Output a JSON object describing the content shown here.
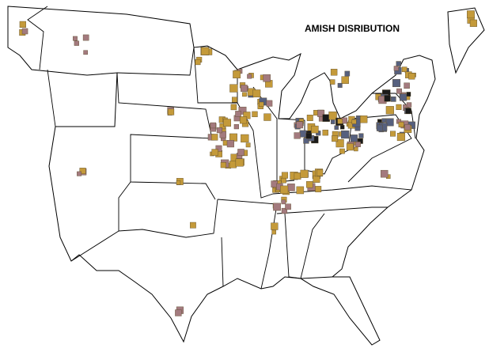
{
  "title": "AMISH DISRIBUTION"
}
